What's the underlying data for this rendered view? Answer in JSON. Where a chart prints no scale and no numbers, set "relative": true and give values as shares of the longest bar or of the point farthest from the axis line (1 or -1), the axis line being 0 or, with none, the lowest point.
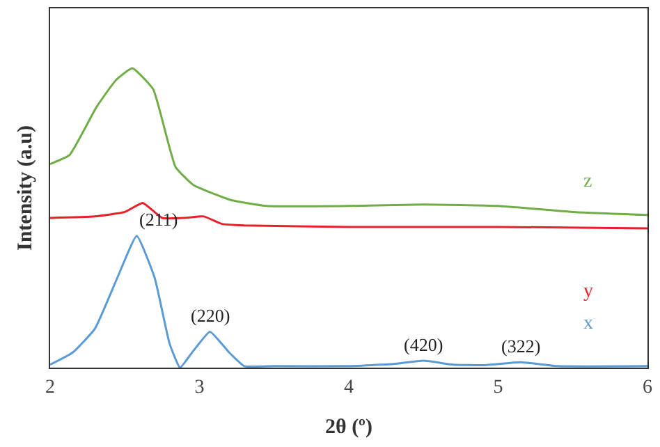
{
  "chart_data": {
    "type": "line",
    "relative": true,
    "xlabel": "2θ (º)",
    "ylabel": "Intensity (a.u)",
    "xlim": [
      2,
      6
    ],
    "xticks": [
      2,
      3,
      4,
      5,
      6
    ],
    "legend": false,
    "marker": "none",
    "line_style": "solid",
    "series": [
      {
        "name": "z",
        "color": "#70ad47",
        "x": [
          2.0,
          2.13,
          2.31,
          2.44,
          2.55,
          2.69,
          2.84,
          2.96,
          3.21,
          3.45,
          4.0,
          4.5,
          5.0,
          5.5,
          6.0
        ],
        "values": [
          0.68,
          0.71,
          0.87,
          0.96,
          1.0,
          0.93,
          0.67,
          0.61,
          0.56,
          0.54,
          0.54,
          0.545,
          0.54,
          0.52,
          0.51
        ]
      },
      {
        "name": "y",
        "color": "#e8202a",
        "x": [
          2.0,
          2.3,
          2.5,
          2.62,
          2.75,
          2.9,
          3.03,
          3.15,
          3.3,
          4.0,
          5.0,
          6.0
        ],
        "values": [
          0.5,
          0.505,
          0.52,
          0.55,
          0.5,
          0.5,
          0.505,
          0.48,
          0.475,
          0.47,
          0.47,
          0.465
        ]
      },
      {
        "name": "x",
        "color": "#5b9bd5",
        "x": [
          2.0,
          2.15,
          2.3,
          2.45,
          2.58,
          2.7,
          2.8,
          2.87,
          2.95,
          3.07,
          3.2,
          3.3,
          3.5,
          4.0,
          4.3,
          4.5,
          4.7,
          4.9,
          5.15,
          5.4,
          6.0
        ],
        "values": [
          0.01,
          0.05,
          0.13,
          0.3,
          0.44,
          0.3,
          0.08,
          0.0,
          0.05,
          0.12,
          0.05,
          0.005,
          0.005,
          0.005,
          0.012,
          0.023,
          0.01,
          0.008,
          0.018,
          0.005,
          0.005
        ]
      }
    ],
    "annotations": [
      {
        "text": "(211)",
        "x": 2.58,
        "y": 0.44
      },
      {
        "text": "(220)",
        "x": 3.07,
        "y": 0.12
      },
      {
        "text": "(420)",
        "x": 4.5,
        "y": 0.023
      },
      {
        "text": "(322)",
        "x": 5.15,
        "y": 0.018
      }
    ]
  }
}
